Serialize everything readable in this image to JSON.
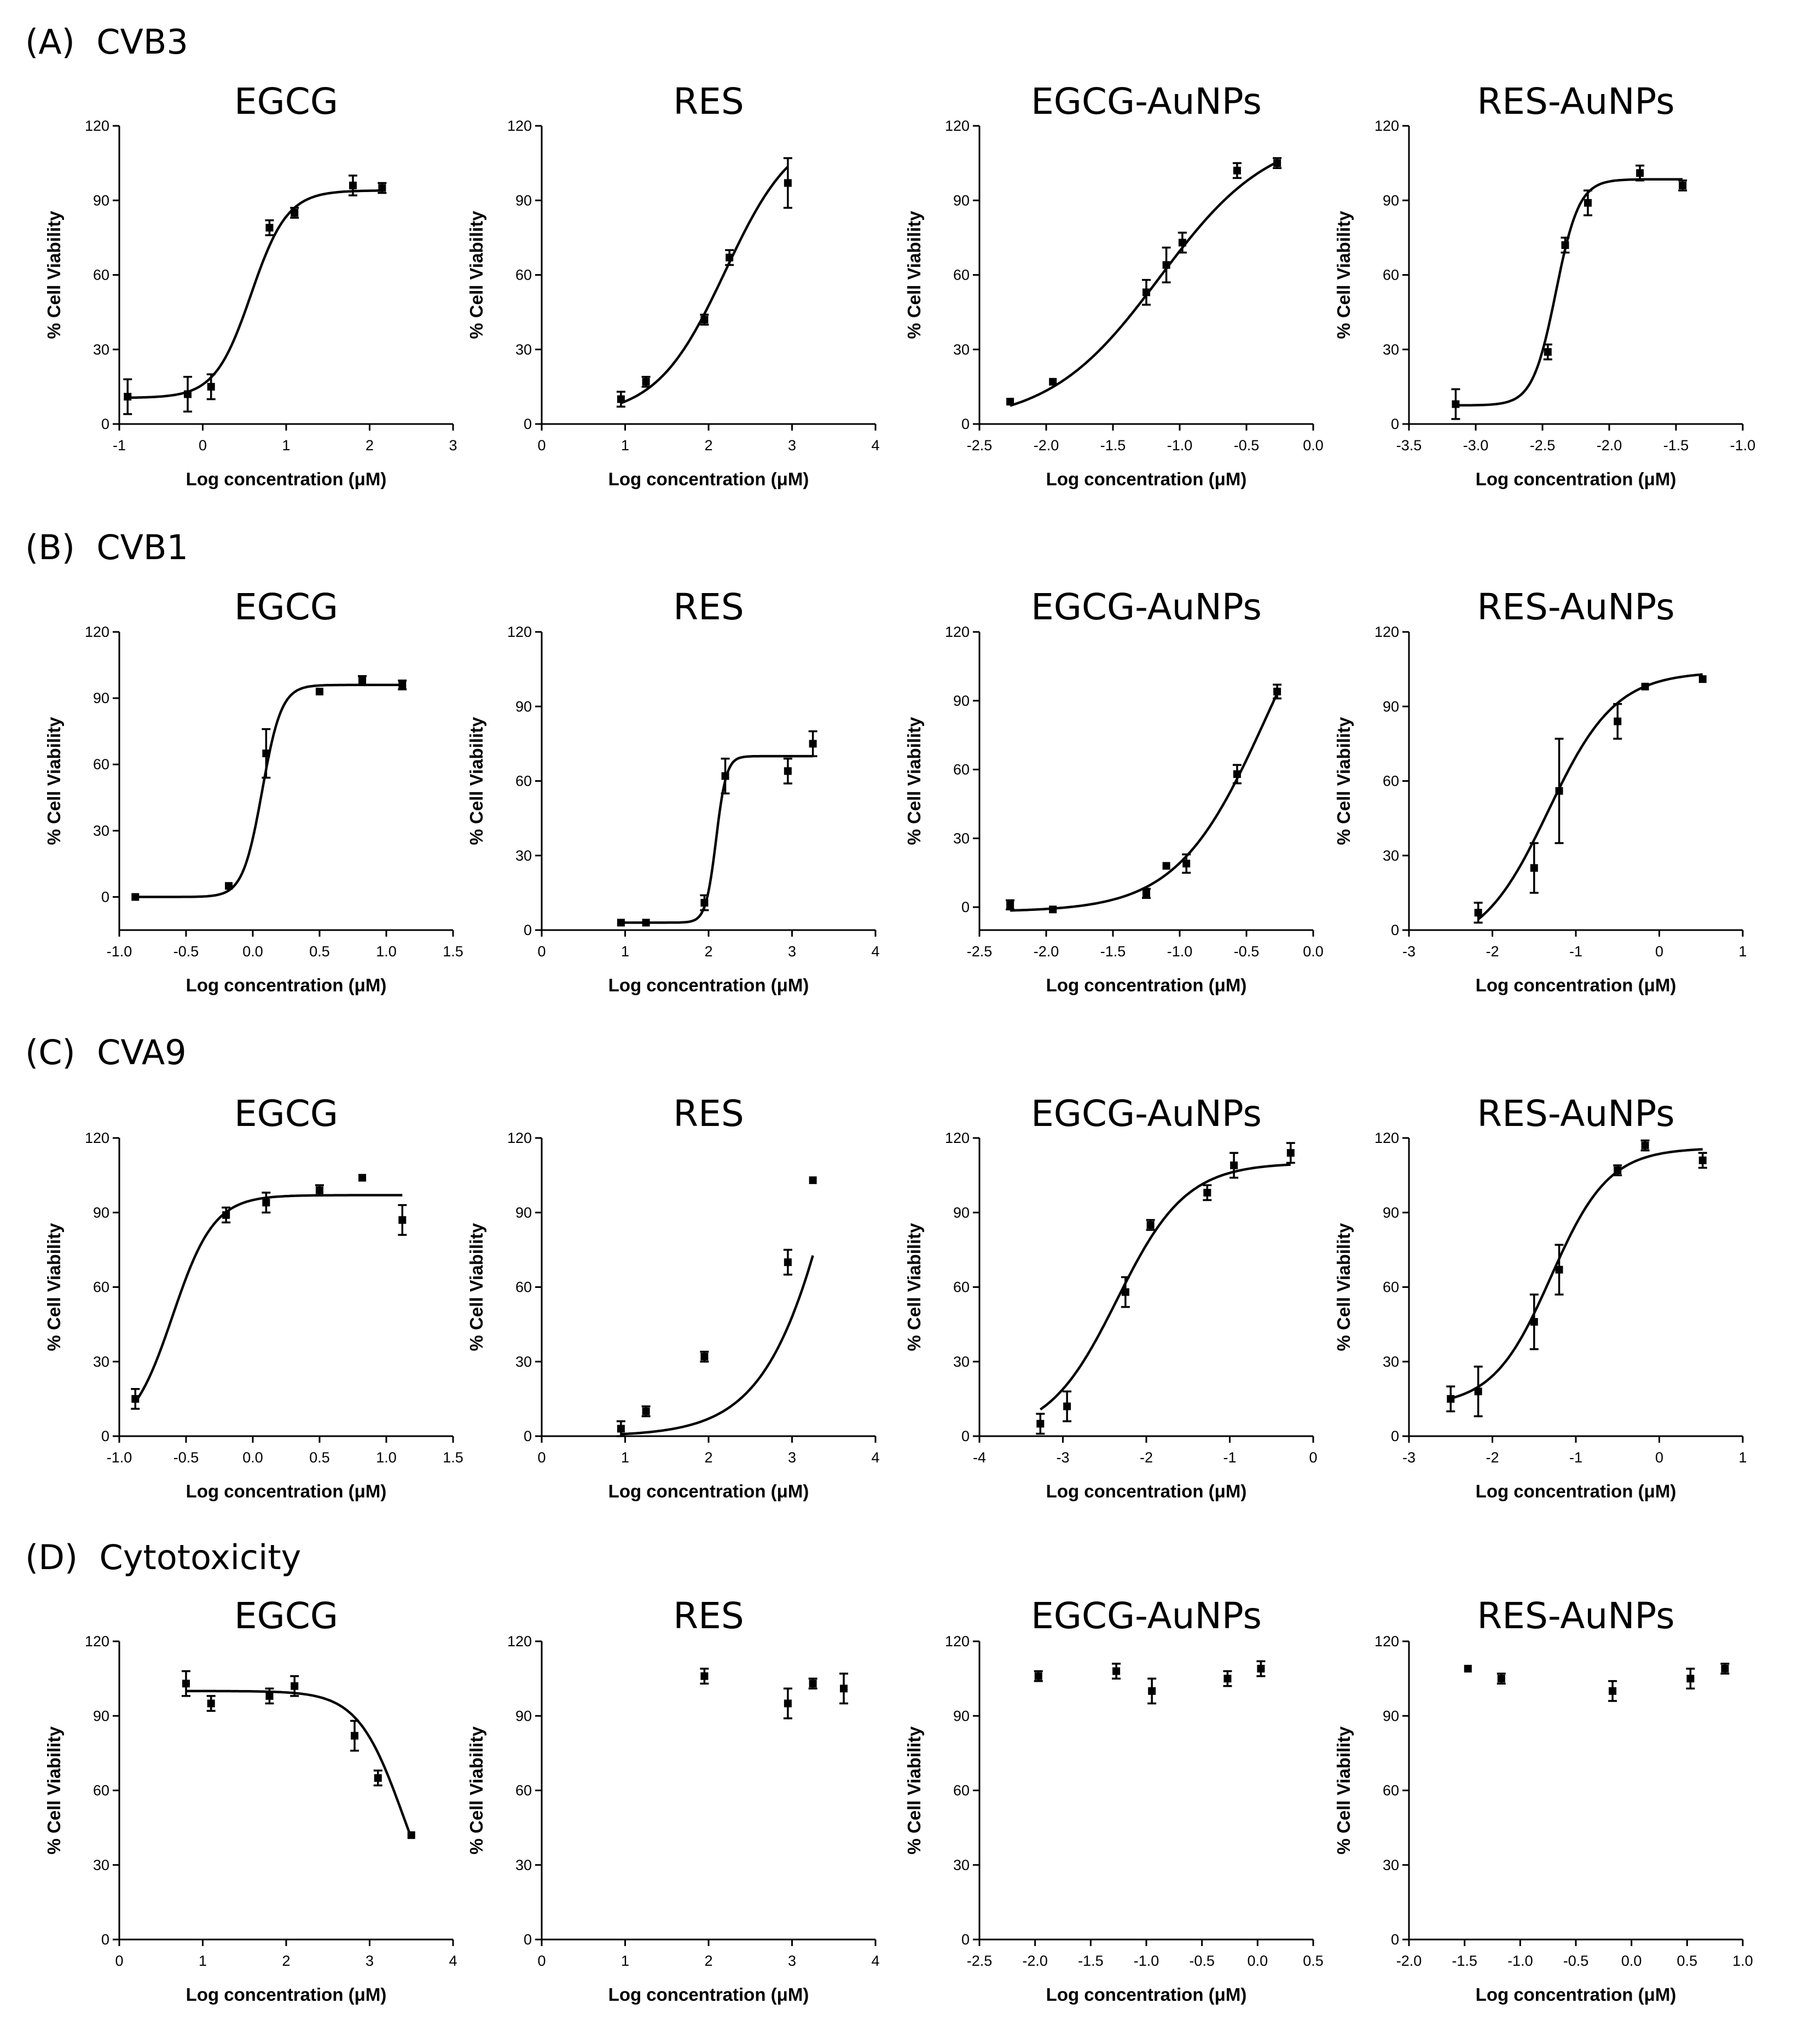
{
  "figure": {
    "rows": [
      {
        "label": "(A)  CVB3"
      },
      {
        "label": "(B)  CVB1"
      },
      {
        "label": "(C)  CVA9"
      },
      {
        "label": "(D)  Cytotoxicity"
      }
    ],
    "xlabel": "Log concentration (μM)",
    "ylabel": "% Cell Viability",
    "yticks": [
      "0",
      "30",
      "60",
      "90",
      "120"
    ]
  },
  "chart_data": [
    {
      "type": "scatter",
      "row": "(A) CVB3",
      "title": "EGCG",
      "xlabel": "Log concentration (μM)",
      "ylabel": "% Cell Viability",
      "xlim": [
        -1,
        3
      ],
      "ylim": [
        0,
        120
      ],
      "xticks": [
        -1,
        0,
        1,
        2,
        3
      ],
      "xtick_labels": [
        "-1",
        "0",
        "1",
        "2",
        "3"
      ],
      "points": [
        {
          "x": -0.9,
          "y": 11,
          "err": 7
        },
        {
          "x": -0.18,
          "y": 12,
          "err": 7
        },
        {
          "x": 0.1,
          "y": 15,
          "err": 5
        },
        {
          "x": 0.8,
          "y": 79,
          "err": 3
        },
        {
          "x": 1.1,
          "y": 85,
          "err": 2
        },
        {
          "x": 1.8,
          "y": 96,
          "err": 4
        },
        {
          "x": 2.15,
          "y": 95,
          "err": 2
        }
      ],
      "fit": {
        "bottom": 10.5,
        "top": 94,
        "logec50": 0.58,
        "hill": 2.0,
        "xrange": [
          -0.9,
          2.15
        ]
      }
    },
    {
      "type": "scatter",
      "row": "(A) CVB3",
      "title": "RES",
      "xlabel": "Log concentration (μM)",
      "ylabel": "% Cell Viability",
      "xlim": [
        0,
        4
      ],
      "ylim": [
        0,
        120
      ],
      "xticks": [
        0,
        1,
        2,
        3,
        4
      ],
      "xtick_labels": [
        "0",
        "1",
        "2",
        "3",
        "4"
      ],
      "points": [
        {
          "x": 0.95,
          "y": 10,
          "err": 3
        },
        {
          "x": 1.25,
          "y": 17,
          "err": 2
        },
        {
          "x": 1.95,
          "y": 42,
          "err": 2
        },
        {
          "x": 2.25,
          "y": 67,
          "err": 3
        },
        {
          "x": 2.95,
          "y": 97,
          "err": 10
        }
      ],
      "fit": {
        "bottom": 3,
        "top": 120,
        "logec50": 2.2,
        "hill": 1.05,
        "xrange": [
          0.95,
          2.95
        ]
      }
    },
    {
      "type": "scatter",
      "row": "(A) CVB3",
      "title": "EGCG-AuNPs",
      "xlabel": "Log concentration (μM)",
      "ylabel": "% Cell Viability",
      "xlim": [
        -2.5,
        0
      ],
      "ylim": [
        0,
        120
      ],
      "xticks": [
        -2.5,
        -2,
        -1.5,
        -1,
        -0.5,
        0
      ],
      "xtick_labels": [
        "-2.5",
        "-2.0",
        "-1.5",
        "-1.0",
        "-0.5",
        "0.0"
      ],
      "points": [
        {
          "x": -2.27,
          "y": 9,
          "err": 1
        },
        {
          "x": -1.95,
          "y": 17,
          "err": 1
        },
        {
          "x": -1.25,
          "y": 53,
          "err": 5
        },
        {
          "x": -1.1,
          "y": 64,
          "err": 7
        },
        {
          "x": -0.98,
          "y": 73,
          "err": 4
        },
        {
          "x": -0.57,
          "y": 102,
          "err": 3
        },
        {
          "x": -0.27,
          "y": 105,
          "err": 2
        }
      ],
      "fit": {
        "bottom": 0,
        "top": 118,
        "logec50": -1.15,
        "hill": 1.05,
        "xrange": [
          -2.27,
          -0.27
        ]
      }
    },
    {
      "type": "scatter",
      "row": "(A) CVB3",
      "title": "RES-AuNPs",
      "xlabel": "Log concentration (μM)",
      "ylabel": "% Cell Viability",
      "xlim": [
        -3.5,
        -1
      ],
      "ylim": [
        0,
        120
      ],
      "xticks": [
        -3.5,
        -3,
        -2.5,
        -2,
        -1.5,
        -1
      ],
      "xtick_labels": [
        "-3.5",
        "-3.0",
        "-2.5",
        "-2.0",
        "-1.5",
        "-1.0"
      ],
      "points": [
        {
          "x": -3.15,
          "y": 8,
          "err": 6
        },
        {
          "x": -2.46,
          "y": 29,
          "err": 3
        },
        {
          "x": -2.33,
          "y": 72,
          "err": 3
        },
        {
          "x": -2.16,
          "y": 89,
          "err": 5
        },
        {
          "x": -1.77,
          "y": 101,
          "err": 3
        },
        {
          "x": -1.45,
          "y": 96,
          "err": 2
        }
      ],
      "fit": {
        "bottom": 7.5,
        "top": 98.5,
        "logec50": -2.4,
        "hill": 5.0,
        "xrange": [
          -3.15,
          -1.45
        ]
      }
    },
    {
      "type": "scatter",
      "row": "(B) CVB1",
      "title": "EGCG",
      "xlabel": "Log concentration (μM)",
      "ylabel": "% Cell Viability",
      "xlim": [
        -1,
        1.5
      ],
      "ylim": [
        -15,
        120
      ],
      "xticks": [
        -1,
        -0.5,
        0,
        0.5,
        1,
        1.5
      ],
      "xtick_labels": [
        "-1.0",
        "-0.5",
        "0.0",
        "0.5",
        "1.0",
        "1.5"
      ],
      "points": [
        {
          "x": -0.88,
          "y": 0,
          "err": 1
        },
        {
          "x": -0.18,
          "y": 5,
          "err": 1
        },
        {
          "x": 0.1,
          "y": 65,
          "err": 11
        },
        {
          "x": 0.5,
          "y": 93,
          "err": 1
        },
        {
          "x": 0.82,
          "y": 98,
          "err": 2
        },
        {
          "x": 1.12,
          "y": 96,
          "err": 2
        }
      ],
      "fit": {
        "bottom": 0,
        "top": 96,
        "logec50": 0.07,
        "hill": 6.0,
        "xrange": [
          -0.88,
          1.12
        ]
      }
    },
    {
      "type": "scatter",
      "row": "(B) CVB1",
      "title": "RES",
      "xlabel": "Log concentration (μM)",
      "ylabel": "% Cell Viability",
      "xlim": [
        0,
        4
      ],
      "ylim": [
        0,
        120
      ],
      "xticks": [
        0,
        1,
        2,
        3,
        4
      ],
      "xtick_labels": [
        "0",
        "1",
        "2",
        "3",
        "4"
      ],
      "points": [
        {
          "x": 0.95,
          "y": 3,
          "err": 1
        },
        {
          "x": 1.25,
          "y": 3,
          "err": 1
        },
        {
          "x": 1.95,
          "y": 11,
          "err": 3
        },
        {
          "x": 2.2,
          "y": 62,
          "err": 7
        },
        {
          "x": 2.95,
          "y": 64,
          "err": 5
        },
        {
          "x": 3.25,
          "y": 75,
          "err": 5
        }
      ],
      "fit": {
        "bottom": 3,
        "top": 70,
        "logec50": 2.09,
        "hill": 7.0,
        "xrange": [
          0.95,
          3.25
        ]
      }
    },
    {
      "type": "scatter",
      "row": "(B) CVB1",
      "title": "EGCG-AuNPs",
      "xlabel": "Log concentration (μM)",
      "ylabel": "% Cell Viability",
      "xlim": [
        -2.5,
        0
      ],
      "ylim": [
        -10,
        120
      ],
      "xticks": [
        -2.5,
        -2,
        -1.5,
        -1,
        -0.5,
        0
      ],
      "xtick_labels": [
        "-2.5",
        "-2.0",
        "-1.5",
        "-1.0",
        "-0.5",
        "0.0"
      ],
      "points": [
        {
          "x": -2.27,
          "y": 1,
          "err": 2
        },
        {
          "x": -1.95,
          "y": -1,
          "err": 1
        },
        {
          "x": -1.25,
          "y": 6,
          "err": 2
        },
        {
          "x": -1.1,
          "y": 18,
          "err": 1
        },
        {
          "x": -0.95,
          "y": 19,
          "err": 4
        },
        {
          "x": -0.57,
          "y": 58,
          "err": 4
        },
        {
          "x": -0.27,
          "y": 94,
          "err": 3
        }
      ],
      "fit": {
        "bottom": -2,
        "top": 168,
        "logec50": -0.35,
        "hill": 1.3,
        "xrange": [
          -2.27,
          -0.27
        ]
      }
    },
    {
      "type": "scatter",
      "row": "(B) CVB1",
      "title": "RES-AuNPs",
      "xlabel": "Log concentration (μM)",
      "ylabel": "% Cell Viability",
      "xlim": [
        -3,
        1
      ],
      "ylim": [
        0,
        120
      ],
      "xticks": [
        -3,
        -2,
        -1,
        0,
        1
      ],
      "xtick_labels": [
        "-3",
        "-2",
        "-1",
        "0",
        "1"
      ],
      "points": [
        {
          "x": -2.17,
          "y": 7,
          "err": 4
        },
        {
          "x": -1.5,
          "y": 25,
          "err": 10
        },
        {
          "x": -1.2,
          "y": 56,
          "err": 21
        },
        {
          "x": -0.5,
          "y": 84,
          "err": 7
        },
        {
          "x": -0.17,
          "y": 98,
          "err": 1
        },
        {
          "x": 0.52,
          "y": 101,
          "err": 1
        }
      ],
      "fit": {
        "bottom": -8,
        "top": 104,
        "logec50": -1.33,
        "hill": 1.08,
        "xrange": [
          -2.17,
          0.52
        ]
      }
    },
    {
      "type": "scatter",
      "row": "(C) CVA9",
      "title": "EGCG",
      "xlabel": "Log concentration (μM)",
      "ylabel": "% Cell Viability",
      "xlim": [
        -1,
        1.5
      ],
      "ylim": [
        0,
        120
      ],
      "xticks": [
        -1,
        -0.5,
        0,
        0.5,
        1,
        1.5
      ],
      "xtick_labels": [
        "-1.0",
        "-0.5",
        "0.0",
        "0.5",
        "1.0",
        "1.5"
      ],
      "points": [
        {
          "x": -0.88,
          "y": 15,
          "err": 4
        },
        {
          "x": -0.2,
          "y": 89,
          "err": 3
        },
        {
          "x": 0.1,
          "y": 94,
          "err": 4
        },
        {
          "x": 0.5,
          "y": 99,
          "err": 2
        },
        {
          "x": 0.82,
          "y": 104,
          "err": 1
        },
        {
          "x": 1.12,
          "y": 87,
          "err": 6
        }
      ],
      "fit": {
        "bottom": 0,
        "top": 97,
        "logec50": -0.6,
        "hill": 2.8,
        "xrange": [
          -0.88,
          1.12
        ]
      }
    },
    {
      "type": "scatter",
      "row": "(C) CVA9",
      "title": "RES",
      "xlabel": "Log concentration (μM)",
      "ylabel": "% Cell Viability",
      "xlim": [
        0,
        4
      ],
      "ylim": [
        0,
        120
      ],
      "xticks": [
        0,
        1,
        2,
        3,
        4
      ],
      "xtick_labels": [
        "0",
        "1",
        "2",
        "3",
        "4"
      ],
      "points": [
        {
          "x": 0.95,
          "y": 3,
          "err": 3
        },
        {
          "x": 1.25,
          "y": 10,
          "err": 2
        },
        {
          "x": 1.95,
          "y": 32,
          "err": 2
        },
        {
          "x": 2.95,
          "y": 70,
          "err": 5
        },
        {
          "x": 3.25,
          "y": 103,
          "err": 1
        }
      ],
      "fit": {
        "bottom": 0,
        "top": 300,
        "logec50": 3.8,
        "hill": 0.9,
        "xrange": [
          0.95,
          3.25
        ]
      }
    },
    {
      "type": "scatter",
      "row": "(C) CVA9",
      "title": "EGCG-AuNPs",
      "xlabel": "Log concentration (μM)",
      "ylabel": "% Cell Viability",
      "xlim": [
        -4,
        0
      ],
      "ylim": [
        0,
        120
      ],
      "xticks": [
        -4,
        -3,
        -2,
        -1,
        0
      ],
      "xtick_labels": [
        "-4",
        "-3",
        "-2",
        "-1",
        "0"
      ],
      "points": [
        {
          "x": -3.27,
          "y": 5,
          "err": 4
        },
        {
          "x": -2.95,
          "y": 12,
          "err": 6
        },
        {
          "x": -2.25,
          "y": 58,
          "err": 6
        },
        {
          "x": -1.95,
          "y": 85,
          "err": 2
        },
        {
          "x": -1.27,
          "y": 98,
          "err": 3
        },
        {
          "x": -0.95,
          "y": 109,
          "err": 5
        },
        {
          "x": -0.27,
          "y": 114,
          "err": 4
        }
      ],
      "fit": {
        "bottom": 0,
        "top": 110,
        "logec50": -2.35,
        "hill": 1.05,
        "xrange": [
          -3.27,
          -0.27
        ]
      }
    },
    {
      "type": "scatter",
      "row": "(C) CVA9",
      "title": "RES-AuNPs",
      "xlabel": "Log concentration (μM)",
      "ylabel": "% Cell Viability",
      "xlim": [
        -3,
        1
      ],
      "ylim": [
        0,
        120
      ],
      "xticks": [
        -3,
        -2,
        -1,
        0,
        1
      ],
      "xtick_labels": [
        "-3",
        "-2",
        "-1",
        "0",
        "1"
      ],
      "points": [
        {
          "x": -2.5,
          "y": 15,
          "err": 5
        },
        {
          "x": -2.17,
          "y": 18,
          "err": 10
        },
        {
          "x": -1.5,
          "y": 46,
          "err": 11
        },
        {
          "x": -1.2,
          "y": 67,
          "err": 10
        },
        {
          "x": -0.5,
          "y": 107,
          "err": 2
        },
        {
          "x": -0.17,
          "y": 117,
          "err": 2
        },
        {
          "x": 0.52,
          "y": 111,
          "err": 3
        }
      ],
      "fit": {
        "bottom": 12,
        "top": 116,
        "logec50": -1.3,
        "hill": 1.25,
        "xrange": [
          -2.5,
          0.52
        ]
      }
    },
    {
      "type": "scatter",
      "row": "(D) Cytotoxicity",
      "title": "EGCG",
      "xlabel": "Log concentration (μM)",
      "ylabel": "% Cell Viability",
      "xlim": [
        0,
        4
      ],
      "ylim": [
        0,
        120
      ],
      "xticks": [
        0,
        1,
        2,
        3,
        4
      ],
      "xtick_labels": [
        "0",
        "1",
        "2",
        "3",
        "4"
      ],
      "points": [
        {
          "x": 0.8,
          "y": 103,
          "err": 5
        },
        {
          "x": 1.1,
          "y": 95,
          "err": 3
        },
        {
          "x": 1.8,
          "y": 98,
          "err": 3
        },
        {
          "x": 2.1,
          "y": 102,
          "err": 4
        },
        {
          "x": 2.82,
          "y": 82,
          "err": 6
        },
        {
          "x": 3.1,
          "y": 65,
          "err": 3
        },
        {
          "x": 3.5,
          "y": 42,
          "err": 1
        }
      ],
      "fit": {
        "bottom": 0,
        "top": 100,
        "logec50": 3.4,
        "hill": 1.6,
        "invert": true,
        "xrange": [
          0.8,
          3.5
        ]
      }
    },
    {
      "type": "scatter",
      "row": "(D) Cytotoxicity",
      "title": "RES",
      "xlabel": "Log concentration (μM)",
      "ylabel": "% Cell Viability",
      "xlim": [
        0,
        4
      ],
      "ylim": [
        0,
        120
      ],
      "xticks": [
        0,
        1,
        2,
        3,
        4
      ],
      "xtick_labels": [
        "0",
        "1",
        "2",
        "3",
        "4"
      ],
      "points": [
        {
          "x": 1.95,
          "y": 106,
          "err": 3
        },
        {
          "x": 2.95,
          "y": 95,
          "err": 6
        },
        {
          "x": 3.25,
          "y": 103,
          "err": 2
        },
        {
          "x": 3.62,
          "y": 101,
          "err": 6
        }
      ]
    },
    {
      "type": "scatter",
      "row": "(D) Cytotoxicity",
      "title": "EGCG-AuNPs",
      "xlabel": "Log concentration (μM)",
      "ylabel": "% Cell Viability",
      "xlim": [
        -2.5,
        0.5
      ],
      "ylim": [
        0,
        120
      ],
      "xticks": [
        -2.5,
        -2,
        -1.5,
        -1,
        -0.5,
        0,
        0.5
      ],
      "xtick_labels": [
        "-2.5",
        "-2.0",
        "-1.5",
        "-1.0",
        "-0.5",
        "0.0",
        "0.5"
      ],
      "points": [
        {
          "x": -1.97,
          "y": 106,
          "err": 2
        },
        {
          "x": -1.27,
          "y": 108,
          "err": 3
        },
        {
          "x": -0.95,
          "y": 100,
          "err": 5
        },
        {
          "x": -0.27,
          "y": 105,
          "err": 3
        },
        {
          "x": 0.03,
          "y": 109,
          "err": 3
        }
      ]
    },
    {
      "type": "scatter",
      "row": "(D) Cytotoxicity",
      "title": "RES-AuNPs",
      "xlabel": "Log concentration (μM)",
      "ylabel": "% Cell Viability",
      "xlim": [
        -2,
        1
      ],
      "ylim": [
        0,
        120
      ],
      "xticks": [
        -2,
        -1.5,
        -1,
        -0.5,
        0,
        0.5,
        1
      ],
      "xtick_labels": [
        "-2.0",
        "-1.5",
        "-1.0",
        "-0.5",
        "0.0",
        "0.5",
        "1.0"
      ],
      "points": [
        {
          "x": -1.47,
          "y": 109,
          "err": 1
        },
        {
          "x": -1.17,
          "y": 105,
          "err": 2
        },
        {
          "x": -0.17,
          "y": 100,
          "err": 4
        },
        {
          "x": 0.53,
          "y": 105,
          "err": 4
        },
        {
          "x": 0.84,
          "y": 109,
          "err": 2
        }
      ]
    }
  ]
}
